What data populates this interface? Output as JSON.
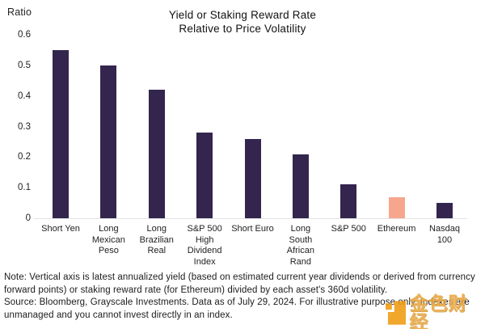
{
  "chart_data": {
    "type": "bar",
    "title": "Yield or Staking Reward Rate Relative to Price Volatility",
    "title_lines": [
      "Yield or Staking Reward Rate",
      "Relative to Price Volatility"
    ],
    "ylabel": "Ratio",
    "xlabel": "",
    "ylim": [
      0,
      0.6
    ],
    "grid": false,
    "legend": false,
    "ytick_labels": [
      "0",
      "0.1",
      "0.2",
      "0.3",
      "0.4",
      "0.5",
      "0.6"
    ],
    "ytick_values": [
      0,
      0.1,
      0.2,
      0.3,
      0.4,
      0.5,
      0.6
    ],
    "categories": [
      "Short Yen",
      "Long Mexican Peso",
      "Long Brazilian Real",
      "S&P 500 High Dividend Index",
      "Short Euro",
      "Long South African Rand",
      "S&P 500",
      "Ethereum",
      "Nasdaq 100"
    ],
    "categories_wrapped": [
      [
        "Short Yen"
      ],
      [
        "Long",
        "Mexican",
        "Peso"
      ],
      [
        "Long",
        "Brazilian",
        "Real"
      ],
      [
        "S&P 500",
        "High",
        "Dividend",
        "Index"
      ],
      [
        "Short Euro"
      ],
      [
        "Long",
        "South",
        "African",
        "Rand"
      ],
      [
        "S&P 500"
      ],
      [
        "Ethereum"
      ],
      [
        "Nasdaq",
        "100"
      ]
    ],
    "values": [
      0.55,
      0.5,
      0.42,
      0.28,
      0.26,
      0.21,
      0.11,
      0.07,
      0.05
    ],
    "bar_color": "#33254d",
    "highlight_index": 7,
    "highlight_color": "#f7a68e"
  },
  "note": {
    "paragraph1": "Note: Vertical axis is latest annualized yield (based on estimated current year dividends or derived from currency forward points) or staking reward rate (for Ethereum) divided by each asset's 360d volatility.",
    "paragraph2": "Source: Bloomberg, Grayscale Investments. Data as of July 29, 2024. For illustrative purpose only. Indexes are unmanaged and you cannot invest directly in an index."
  },
  "watermark": {
    "text": "金色财经",
    "icon_color": "#f09b0f",
    "text_color": "#e9a53c"
  }
}
